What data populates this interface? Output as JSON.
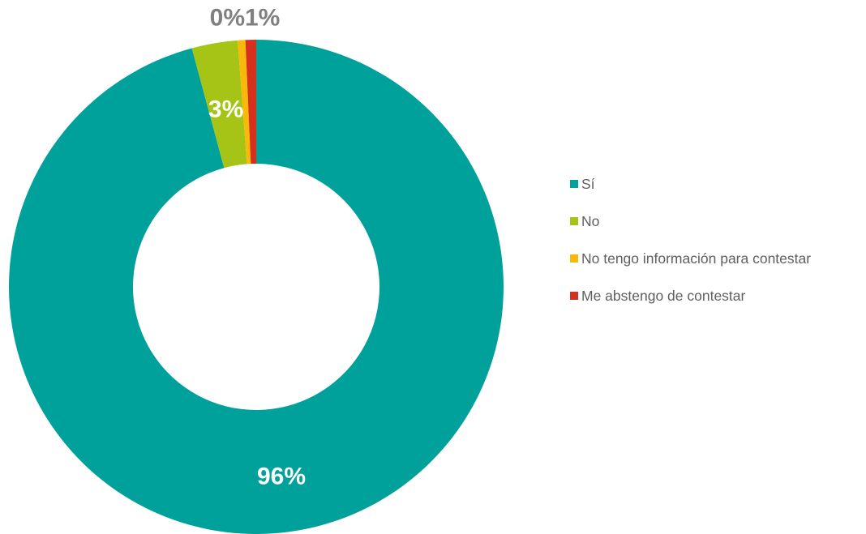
{
  "chart_data": {
    "type": "pie",
    "categories": [
      "Sí",
      "No",
      "No tengo información para contestar",
      "Me abstengo de contestar"
    ],
    "values": [
      96,
      3,
      0.5,
      0.7
    ],
    "data_labels": [
      "96%",
      "3%",
      "0%",
      "1%"
    ],
    "colors": [
      "#00a19a",
      "#a6c416",
      "#f9b90b",
      "#d5311d"
    ],
    "label_colors": [
      "#ffffff",
      "#ffffff",
      "#808080",
      "#808080"
    ],
    "legend_position": "right",
    "donut": true
  }
}
